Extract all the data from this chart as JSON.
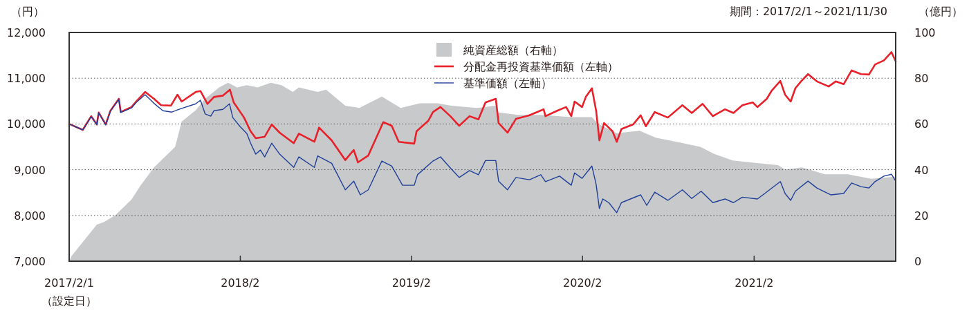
{
  "chart_data": {
    "type": "line",
    "subtitle": "期間：2017/2/1～2021/11/30",
    "ylabel": "（円）",
    "y2label": "（億円）",
    "annotations": [
      "（設定日）"
    ],
    "xlim": [
      "2017-02-01",
      "2021-11-30"
    ],
    "xticks": [
      {
        "value": "2017-02-01",
        "label": "2017/2/1"
      },
      {
        "value": "2018-02-01",
        "label": "2018/2"
      },
      {
        "value": "2019-02-01",
        "label": "2019/2"
      },
      {
        "value": "2020-02-01",
        "label": "2020/2"
      },
      {
        "value": "2021-02-01",
        "label": "2021/2"
      }
    ],
    "ylim": [
      7000,
      12000
    ],
    "yticks": [
      {
        "value": 7000,
        "label": "7,000"
      },
      {
        "value": 8000,
        "label": "8,000"
      },
      {
        "value": 9000,
        "label": "9,000"
      },
      {
        "value": 10000,
        "label": "10,000"
      },
      {
        "value": 11000,
        "label": "11,000"
      },
      {
        "value": 12000,
        "label": "12,000"
      }
    ],
    "y2lim": [
      0,
      100
    ],
    "y2ticks": [
      0,
      20,
      40,
      60,
      80,
      100
    ],
    "grid": "y",
    "legend": "top",
    "line_style": "solid",
    "series": [
      {
        "name": "純資産総額（右軸）",
        "type": "area",
        "axis": "y2",
        "color": "#c8c9cb",
        "x": [
          "2017-02-01",
          "2017-02-05",
          "2017-04-01",
          "2017-04-15",
          "2017-05-10",
          "2017-06-14",
          "2017-07-03",
          "2017-08-01",
          "2017-08-31",
          "2017-09-15",
          "2017-09-29",
          "2017-10-29",
          "2017-11-18",
          "2017-12-18",
          "2018-01-06",
          "2018-01-25",
          "2018-02-15",
          "2018-03-10",
          "2018-04-07",
          "2018-04-30",
          "2018-05-24",
          "2018-06-06",
          "2018-07-16",
          "2018-08-03",
          "2018-09-13",
          "2018-10-13",
          "2018-11-30",
          "2019-01-09",
          "2019-02-19",
          "2019-03-29",
          "2019-04-27",
          "2019-06-21",
          "2019-07-30",
          "2019-08-06",
          "2019-09-16",
          "2019-11-04",
          "2020-01-08",
          "2020-02-21",
          "2020-03-06",
          "2020-04-14",
          "2020-06-02",
          "2020-07-06",
          "2020-08-25",
          "2020-10-09",
          "2020-11-07",
          "2020-12-17",
          "2021-02-04",
          "2021-03-24",
          "2021-04-08",
          "2021-05-14",
          "2021-07-02",
          "2021-08-20",
          "2021-10-09",
          "2021-11-30"
        ],
        "values": [
          0,
          2,
          16,
          17,
          20,
          27,
          33,
          41,
          47,
          50,
          61,
          66,
          71,
          76,
          78,
          76,
          77,
          76,
          78,
          77,
          74,
          76,
          74,
          75,
          68,
          67,
          72,
          67,
          69,
          69,
          68,
          67,
          68,
          65,
          64,
          64,
          63,
          63,
          60,
          56,
          57,
          54,
          52,
          50,
          47,
          44,
          43,
          42,
          40,
          41,
          38,
          38,
          36,
          37
        ]
      },
      {
        "name": "分配金再投資基準価額（左軸）",
        "color": "#e8202a",
        "x": [
          "2017-02-01",
          "2017-03-02",
          "2017-03-20",
          "2017-04-01",
          "2017-04-05",
          "2017-04-20",
          "2017-04-30",
          "2017-05-18",
          "2017-05-22",
          "2017-06-14",
          "2017-06-24",
          "2017-07-13",
          "2017-08-01",
          "2017-08-16",
          "2017-09-06",
          "2017-09-20",
          "2017-09-29",
          "2017-10-29",
          "2017-11-08",
          "2017-11-23",
          "2017-12-07",
          "2017-12-26",
          "2018-01-10",
          "2018-01-18",
          "2018-02-09",
          "2018-02-23",
          "2018-03-06",
          "2018-03-25",
          "2018-04-09",
          "2018-04-26",
          "2018-05-26",
          "2018-06-06",
          "2018-07-09",
          "2018-07-19",
          "2018-08-15",
          "2018-09-13",
          "2018-10-01",
          "2018-10-10",
          "2018-11-01",
          "2018-12-03",
          "2018-12-21",
          "2019-01-05",
          "2019-02-07",
          "2019-02-12",
          "2019-03-09",
          "2019-03-19",
          "2019-04-04",
          "2019-04-25",
          "2019-05-14",
          "2019-06-05",
          "2019-06-24",
          "2019-07-09",
          "2019-07-31",
          "2019-08-06",
          "2019-08-25",
          "2019-09-12",
          "2019-10-11",
          "2019-11-10",
          "2019-11-14",
          "2019-12-09",
          "2019-12-28",
          "2020-01-08",
          "2020-01-15",
          "2020-01-31",
          "2020-02-08",
          "2020-02-21",
          "2020-03-01",
          "2020-03-08",
          "2020-03-18",
          "2020-04-05",
          "2020-04-14",
          "2020-04-24",
          "2020-05-19",
          "2020-06-04",
          "2020-06-15",
          "2020-07-04",
          "2020-08-01",
          "2020-09-01",
          "2020-09-21",
          "2020-10-14",
          "2020-11-05",
          "2020-12-01",
          "2020-12-19",
          "2021-01-07",
          "2021-01-29",
          "2021-02-08",
          "2021-02-28",
          "2021-03-10",
          "2021-03-29",
          "2021-04-08",
          "2021-04-20",
          "2021-04-30",
          "2021-05-12",
          "2021-05-27",
          "2021-06-15",
          "2021-07-10",
          "2021-07-25",
          "2021-08-11",
          "2021-08-28",
          "2021-09-17",
          "2021-10-04",
          "2021-10-17",
          "2021-11-05",
          "2021-11-21",
          "2021-11-30"
        ],
        "values": [
          10000,
          9870,
          10170,
          9990,
          10250,
          9990,
          10290,
          10550,
          10260,
          10370,
          10490,
          10700,
          10550,
          10410,
          10400,
          10640,
          10490,
          10700,
          10720,
          10440,
          10590,
          10620,
          10750,
          10470,
          10140,
          9840,
          9690,
          9720,
          9990,
          9810,
          9580,
          9790,
          9610,
          9920,
          9640,
          9210,
          9430,
          9160,
          9310,
          10040,
          9960,
          9610,
          9570,
          9840,
          10070,
          10260,
          10370,
          10170,
          9960,
          10170,
          10100,
          10470,
          10550,
          10020,
          9810,
          10110,
          10190,
          10320,
          10170,
          10290,
          10370,
          10170,
          10490,
          10370,
          10590,
          10780,
          10290,
          9640,
          10020,
          9840,
          9610,
          9890,
          9990,
          10190,
          9950,
          10260,
          10140,
          10410,
          10240,
          10440,
          10170,
          10320,
          10240,
          10410,
          10470,
          10370,
          10550,
          10720,
          10940,
          10640,
          10490,
          10780,
          10930,
          11090,
          10930,
          10820,
          10930,
          10870,
          11170,
          11090,
          11080,
          11300,
          11390,
          11570,
          11370
        ]
      },
      {
        "name": "基準価額（左軸）",
        "color": "#1f3f99",
        "x": [
          "2017-02-01",
          "2017-03-02",
          "2017-03-20",
          "2017-04-01",
          "2017-04-05",
          "2017-04-20",
          "2017-04-30",
          "2017-05-18",
          "2017-05-22",
          "2017-06-14",
          "2017-06-24",
          "2017-07-13",
          "2017-08-01",
          "2017-08-20",
          "2017-09-08",
          "2017-09-29",
          "2017-10-29",
          "2017-11-08",
          "2017-11-18",
          "2017-11-30",
          "2017-12-07",
          "2017-12-26",
          "2018-01-09",
          "2018-01-16",
          "2018-01-31",
          "2018-02-15",
          "2018-02-23",
          "2018-03-06",
          "2018-03-16",
          "2018-03-25",
          "2018-04-09",
          "2018-04-26",
          "2018-05-26",
          "2018-06-06",
          "2018-07-09",
          "2018-07-16",
          "2018-08-15",
          "2018-09-13",
          "2018-10-01",
          "2018-10-15",
          "2018-11-01",
          "2018-11-30",
          "2018-12-21",
          "2019-01-13",
          "2019-02-07",
          "2019-02-14",
          "2019-03-19",
          "2019-04-04",
          "2019-04-25",
          "2019-05-14",
          "2019-06-05",
          "2019-06-24",
          "2019-07-09",
          "2019-07-31",
          "2019-08-06",
          "2019-08-25",
          "2019-09-12",
          "2019-10-11",
          "2019-11-04",
          "2019-11-14",
          "2019-12-14",
          "2020-01-08",
          "2020-01-15",
          "2020-01-31",
          "2020-02-21",
          "2020-03-01",
          "2020-03-08",
          "2020-03-15",
          "2020-03-28",
          "2020-04-14",
          "2020-04-24",
          "2020-06-04",
          "2020-06-17",
          "2020-07-04",
          "2020-08-01",
          "2020-09-01",
          "2020-09-21",
          "2020-10-11",
          "2020-11-05",
          "2020-12-01",
          "2020-12-19",
          "2021-01-07",
          "2021-02-08",
          "2021-03-02",
          "2021-03-29",
          "2021-04-08",
          "2021-04-20",
          "2021-04-30",
          "2021-05-27",
          "2021-06-15",
          "2021-07-15",
          "2021-08-11",
          "2021-08-28",
          "2021-09-17",
          "2021-10-04",
          "2021-10-17",
          "2021-11-05",
          "2021-11-21",
          "2021-11-30"
        ],
        "values": [
          10000,
          9870,
          10160,
          9980,
          10240,
          9980,
          10280,
          10540,
          10250,
          10350,
          10470,
          10640,
          10450,
          10290,
          10260,
          10340,
          10440,
          10520,
          10220,
          10170,
          10290,
          10320,
          10440,
          10140,
          9950,
          9790,
          9580,
          9340,
          9430,
          9280,
          9580,
          9340,
          9050,
          9280,
          9050,
          9300,
          9140,
          8560,
          8750,
          8450,
          8560,
          9190,
          9080,
          8660,
          8660,
          8890,
          9190,
          9280,
          9040,
          8830,
          8980,
          8890,
          9200,
          9200,
          8750,
          8560,
          8830,
          8780,
          8890,
          8740,
          8860,
          8660,
          8930,
          8810,
          9080,
          8680,
          8150,
          8360,
          8280,
          8060,
          8280,
          8450,
          8220,
          8510,
          8330,
          8560,
          8370,
          8530,
          8280,
          8360,
          8280,
          8400,
          8360,
          8530,
          8740,
          8480,
          8330,
          8530,
          8750,
          8600,
          8450,
          8480,
          8710,
          8630,
          8600,
          8740,
          8860,
          8900,
          8750
        ]
      }
    ]
  }
}
